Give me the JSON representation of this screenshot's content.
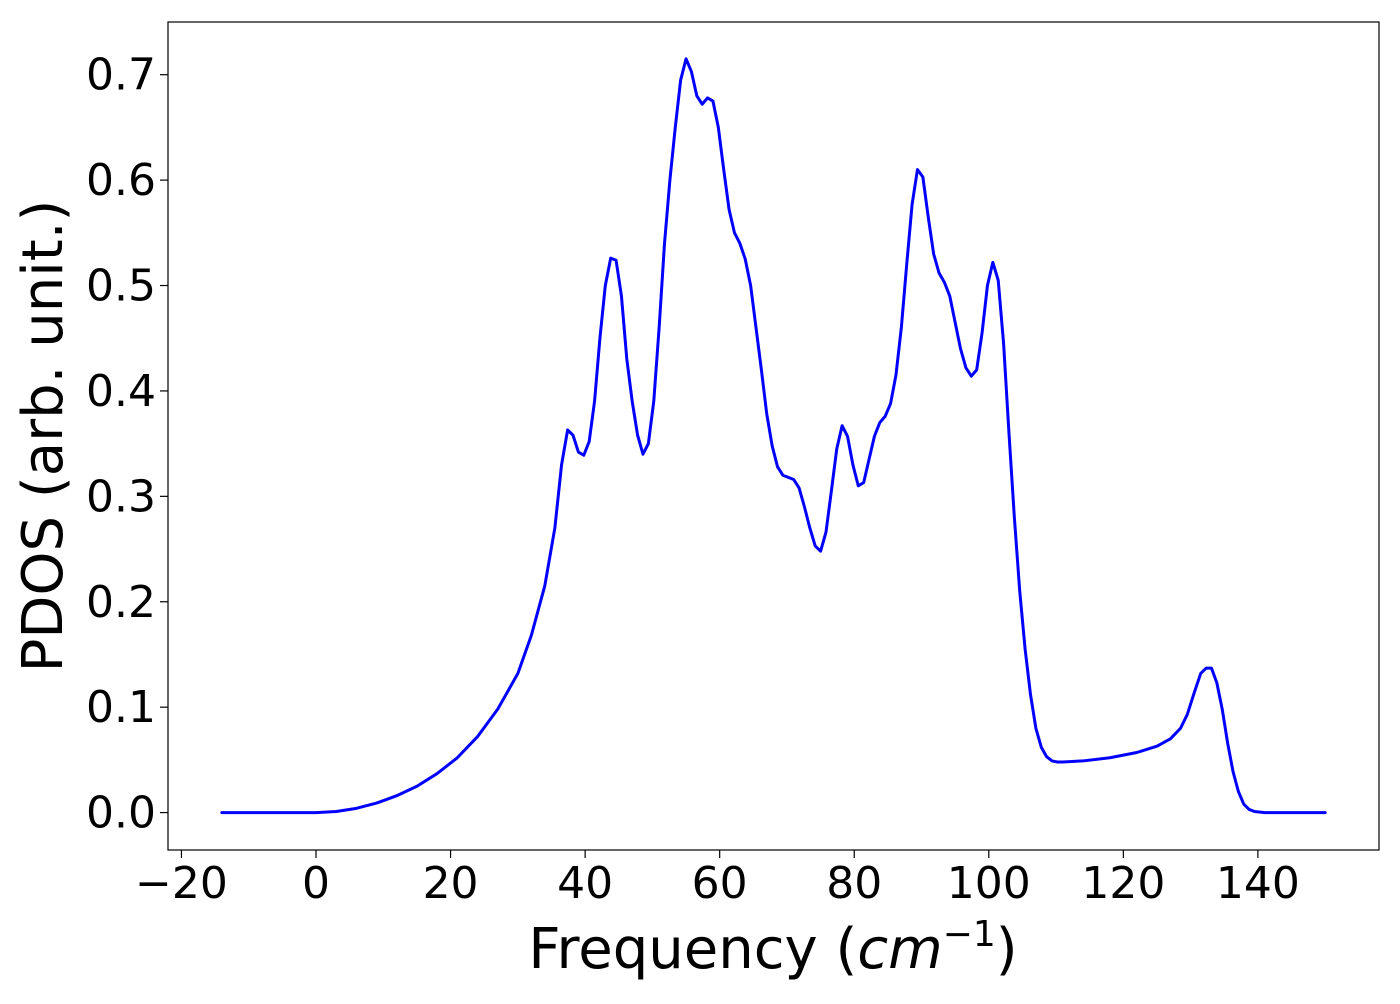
{
  "chart_data": {
    "type": "line",
    "title": "",
    "xlabel_text": "Frequency (",
    "xlabel_math_base": "cm",
    "xlabel_math_exp": "−1",
    "xlabel_close": ")",
    "ylabel": "PDOS (arb. unit.)",
    "xlim": [
      -22,
      158
    ],
    "ylim": [
      -0.0355,
      0.75
    ],
    "x_ticks": [
      -20,
      0,
      20,
      40,
      60,
      80,
      100,
      120,
      140
    ],
    "x_tick_labels": [
      "−20",
      "0",
      "20",
      "40",
      "60",
      "80",
      "100",
      "120",
      "140"
    ],
    "y_ticks": [
      0.0,
      0.1,
      0.2,
      0.3,
      0.4,
      0.5,
      0.6,
      0.7
    ],
    "y_tick_labels": [
      "0.0",
      "0.1",
      "0.2",
      "0.3",
      "0.4",
      "0.5",
      "0.6",
      "0.7"
    ],
    "grid": false,
    "series": [
      {
        "color": "#0000ff",
        "points": [
          [
            -14,
            0.0
          ],
          [
            -10,
            0.0
          ],
          [
            -5,
            0.0
          ],
          [
            0,
            0.0
          ],
          [
            3,
            0.001
          ],
          [
            6,
            0.004
          ],
          [
            9,
            0.009
          ],
          [
            12,
            0.016
          ],
          [
            15,
            0.025
          ],
          [
            18,
            0.037
          ],
          [
            21,
            0.052
          ],
          [
            24,
            0.072
          ],
          [
            27,
            0.098
          ],
          [
            30,
            0.132
          ],
          [
            32,
            0.168
          ],
          [
            34,
            0.215
          ],
          [
            35.5,
            0.27
          ],
          [
            36.5,
            0.33
          ],
          [
            37.4,
            0.363
          ],
          [
            38.2,
            0.358
          ],
          [
            39,
            0.342
          ],
          [
            39.8,
            0.339
          ],
          [
            40.6,
            0.352
          ],
          [
            41.4,
            0.39
          ],
          [
            42.2,
            0.45
          ],
          [
            43,
            0.5
          ],
          [
            43.8,
            0.526
          ],
          [
            44.6,
            0.524
          ],
          [
            45.4,
            0.49
          ],
          [
            46.2,
            0.43
          ],
          [
            47,
            0.39
          ],
          [
            47.8,
            0.358
          ],
          [
            48.6,
            0.34
          ],
          [
            49.4,
            0.35
          ],
          [
            50.2,
            0.39
          ],
          [
            51,
            0.46
          ],
          [
            51.8,
            0.54
          ],
          [
            52.6,
            0.6
          ],
          [
            53.4,
            0.65
          ],
          [
            54.2,
            0.695
          ],
          [
            55.0,
            0.715
          ],
          [
            55.8,
            0.703
          ],
          [
            56.6,
            0.68
          ],
          [
            57.4,
            0.672
          ],
          [
            58.2,
            0.678
          ],
          [
            59.0,
            0.675
          ],
          [
            59.8,
            0.65
          ],
          [
            60.6,
            0.61
          ],
          [
            61.4,
            0.572
          ],
          [
            62.2,
            0.55
          ],
          [
            63.0,
            0.54
          ],
          [
            63.8,
            0.525
          ],
          [
            64.6,
            0.5
          ],
          [
            65.4,
            0.46
          ],
          [
            66.2,
            0.42
          ],
          [
            67.0,
            0.378
          ],
          [
            67.8,
            0.348
          ],
          [
            68.6,
            0.328
          ],
          [
            69.4,
            0.32
          ],
          [
            70.2,
            0.318
          ],
          [
            71.0,
            0.316
          ],
          [
            71.8,
            0.308
          ],
          [
            72.6,
            0.29
          ],
          [
            73.4,
            0.27
          ],
          [
            74.2,
            0.253
          ],
          [
            75.0,
            0.248
          ],
          [
            75.8,
            0.266
          ],
          [
            76.6,
            0.305
          ],
          [
            77.4,
            0.345
          ],
          [
            78.2,
            0.367
          ],
          [
            79.0,
            0.357
          ],
          [
            79.8,
            0.33
          ],
          [
            80.6,
            0.31
          ],
          [
            81.4,
            0.313
          ],
          [
            82.2,
            0.335
          ],
          [
            83.0,
            0.357
          ],
          [
            83.8,
            0.37
          ],
          [
            84.6,
            0.376
          ],
          [
            85.4,
            0.388
          ],
          [
            86.2,
            0.415
          ],
          [
            87.0,
            0.46
          ],
          [
            87.8,
            0.52
          ],
          [
            88.6,
            0.577
          ],
          [
            89.4,
            0.61
          ],
          [
            90.2,
            0.603
          ],
          [
            91.0,
            0.565
          ],
          [
            91.8,
            0.53
          ],
          [
            92.6,
            0.512
          ],
          [
            93.4,
            0.503
          ],
          [
            94.2,
            0.49
          ],
          [
            95.0,
            0.465
          ],
          [
            95.8,
            0.44
          ],
          [
            96.6,
            0.422
          ],
          [
            97.4,
            0.414
          ],
          [
            98.2,
            0.42
          ],
          [
            99.0,
            0.455
          ],
          [
            99.8,
            0.5
          ],
          [
            100.6,
            0.522
          ],
          [
            101.4,
            0.505
          ],
          [
            102.2,
            0.445
          ],
          [
            103.0,
            0.36
          ],
          [
            103.8,
            0.28
          ],
          [
            104.6,
            0.21
          ],
          [
            105.4,
            0.155
          ],
          [
            106.2,
            0.112
          ],
          [
            107.0,
            0.08
          ],
          [
            107.8,
            0.062
          ],
          [
            108.6,
            0.053
          ],
          [
            109.4,
            0.049
          ],
          [
            110.2,
            0.048
          ],
          [
            111.0,
            0.048
          ],
          [
            114.0,
            0.049
          ],
          [
            118.0,
            0.052
          ],
          [
            122.0,
            0.057
          ],
          [
            125.0,
            0.063
          ],
          [
            127.0,
            0.07
          ],
          [
            128.5,
            0.08
          ],
          [
            129.5,
            0.093
          ],
          [
            130.5,
            0.113
          ],
          [
            131.5,
            0.132
          ],
          [
            132.3,
            0.137
          ],
          [
            133.1,
            0.137
          ],
          [
            133.9,
            0.123
          ],
          [
            134.7,
            0.098
          ],
          [
            135.5,
            0.066
          ],
          [
            136.3,
            0.039
          ],
          [
            137.1,
            0.02
          ],
          [
            137.9,
            0.008
          ],
          [
            138.7,
            0.003
          ],
          [
            139.5,
            0.001
          ],
          [
            141.0,
            0.0
          ],
          [
            145.0,
            0.0
          ],
          [
            150.0,
            0.0
          ]
        ]
      }
    ]
  }
}
